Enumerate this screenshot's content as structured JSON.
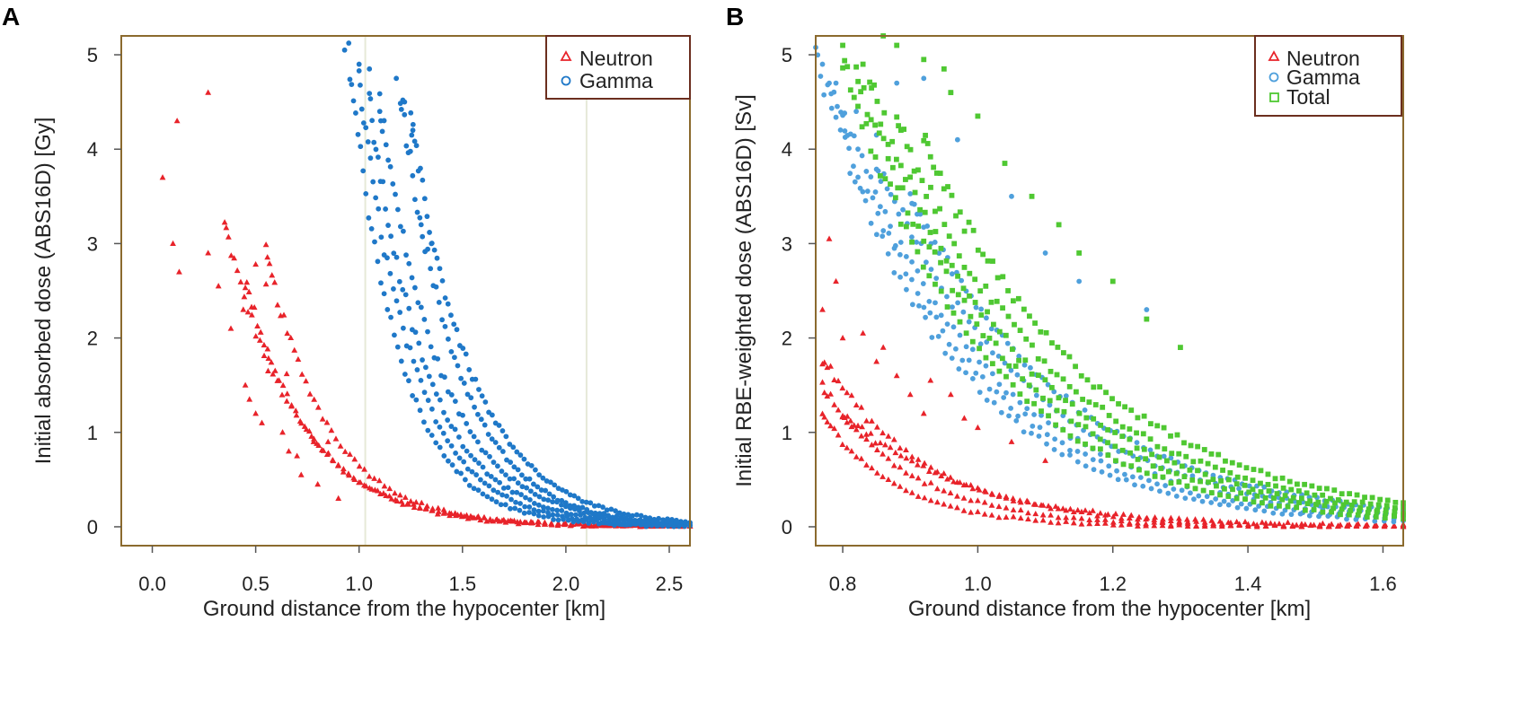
{
  "chart_data": [
    {
      "panel_label": "A",
      "type": "scatter",
      "xlabel": "Ground distance from the hypocenter [km]",
      "ylabel": "Initial absorbed dose (ABS16D) [Gy]",
      "xlim": [
        -0.15,
        2.6
      ],
      "ylim": [
        -0.2,
        5.2
      ],
      "xticks": [
        0.0,
        0.5,
        1.0,
        1.5,
        2.0,
        2.5
      ],
      "xtick_labels": [
        "0.0",
        "0.5",
        "1.0",
        "1.5",
        "2.0",
        "2.5"
      ],
      "yticks": [
        0,
        1,
        2,
        3,
        4,
        5
      ],
      "ytick_labels": [
        "0",
        "1",
        "2",
        "3",
        "4",
        "5"
      ],
      "vlines": [
        1.03,
        2.1
      ],
      "legend": {
        "position": "top-right",
        "entries": [
          "Neutron",
          "Gamma"
        ]
      },
      "series": [
        {
          "name": "Neutron",
          "marker": "triangle",
          "color": "#e8232a",
          "scatter_points": [
            [
              0.05,
              3.7
            ],
            [
              0.1,
              3.0
            ],
            [
              0.12,
              4.3
            ],
            [
              0.13,
              2.7
            ],
            [
              0.27,
              4.6
            ],
            [
              0.27,
              2.9
            ],
            [
              0.32,
              2.55
            ],
            [
              0.38,
              2.1
            ],
            [
              0.44,
              2.3
            ],
            [
              0.45,
              1.5
            ],
            [
              0.47,
              1.35
            ],
            [
              0.5,
              2.78
            ],
            [
              0.5,
              1.2
            ],
            [
              0.53,
              1.1
            ],
            [
              0.55,
              2.57
            ],
            [
              0.56,
              1.65
            ],
            [
              0.65,
              1.62
            ],
            [
              0.63,
              1.0
            ],
            [
              0.66,
              0.8
            ],
            [
              0.7,
              0.75
            ],
            [
              0.72,
              0.55
            ],
            [
              0.78,
              0.9
            ],
            [
              0.85,
              0.9
            ],
            [
              0.8,
              0.45
            ],
            [
              0.9,
              0.3
            ]
          ],
          "curves": [
            {
              "x_start": 0.35,
              "x_end": 2.6,
              "params": [
                0.0,
                3.2,
                2.9
              ]
            },
            {
              "x_start": 0.45,
              "x_end": 2.6,
              "params": [
                0.0,
                2.6,
                3.1
              ]
            },
            {
              "x_start": 0.55,
              "x_end": 2.6,
              "params": [
                0.0,
                2.9,
                3.3
              ]
            }
          ]
        },
        {
          "name": "Gamma",
          "marker": "circle",
          "color": "#1f78c8",
          "scatter_points": [
            [
              0.93,
              5.05
            ],
            [
              1.0,
              4.9
            ],
            [
              1.05,
              4.85
            ],
            [
              1.18,
              4.75
            ],
            [
              1.22,
              4.5
            ],
            [
              1.26,
              4.2
            ],
            [
              1.1,
              4.4
            ],
            [
              1.35,
              3.0
            ],
            [
              1.3,
              3.2
            ]
          ],
          "curves": [
            {
              "x_start": 0.95,
              "x_end": 2.6,
              "params": [
                0.0,
                5.0,
                4.1
              ]
            },
            {
              "x_start": 1.0,
              "x_end": 2.6,
              "params": [
                0.0,
                4.7,
                3.8
              ]
            },
            {
              "x_start": 1.05,
              "x_end": 2.6,
              "params": [
                0.0,
                4.5,
                3.6
              ]
            },
            {
              "x_start": 1.1,
              "x_end": 2.6,
              "params": [
                0.0,
                4.5,
                3.4
              ]
            },
            {
              "x_start": 1.2,
              "x_end": 2.6,
              "params": [
                0.0,
                4.6,
                3.6
              ]
            },
            {
              "x_start": 1.25,
              "x_end": 2.6,
              "params": [
                0.0,
                4.3,
                3.3
              ]
            }
          ]
        }
      ]
    },
    {
      "panel_label": "B",
      "type": "scatter",
      "xlabel": "Ground distance from the hypocenter [km]",
      "ylabel": "Initial RBE-weighted dose (ABS16D) [Sv]",
      "xlim": [
        0.76,
        1.63
      ],
      "ylim": [
        -0.2,
        5.2
      ],
      "xticks": [
        0.8,
        1.0,
        1.2,
        1.4,
        1.6
      ],
      "xtick_labels": [
        "0.8",
        "1.0",
        "1.2",
        "1.4",
        "1.6"
      ],
      "yticks": [
        0,
        1,
        2,
        3,
        4,
        5
      ],
      "ytick_labels": [
        "0",
        "1",
        "2",
        "3",
        "4",
        "5"
      ],
      "vlines": [],
      "legend": {
        "position": "top-right",
        "entries": [
          "Neutron",
          "Gamma",
          "Total"
        ]
      },
      "series": [
        {
          "name": "Neutron",
          "marker": "triangle",
          "color": "#e8232a",
          "scatter_points": [
            [
              0.77,
              2.3
            ],
            [
              0.78,
              3.05
            ],
            [
              0.79,
              2.6
            ],
            [
              0.8,
              2.0
            ],
            [
              0.83,
              2.05
            ],
            [
              0.86,
              1.9
            ],
            [
              0.88,
              1.6
            ],
            [
              0.9,
              1.4
            ],
            [
              0.93,
              1.55
            ],
            [
              0.96,
              1.4
            ],
            [
              0.98,
              1.15
            ],
            [
              1.0,
              1.05
            ],
            [
              1.05,
              0.9
            ],
            [
              1.1,
              0.7
            ],
            [
              0.85,
              1.75
            ],
            [
              0.92,
              1.2
            ]
          ],
          "curves": [
            {
              "x_start": 0.77,
              "x_end": 1.63,
              "params": [
                0.76,
                1.3,
                9.0
              ]
            },
            {
              "x_start": 0.77,
              "x_end": 1.63,
              "params": [
                0.76,
                1.6,
                7.5
              ]
            },
            {
              "x_start": 0.77,
              "x_end": 1.63,
              "params": [
                0.76,
                1.9,
                6.5
              ]
            },
            {
              "x_start": 0.8,
              "x_end": 1.63,
              "params": [
                0.76,
                1.5,
                5.5
              ]
            }
          ]
        },
        {
          "name": "Gamma",
          "marker": "circle",
          "color": "#4fa0dc",
          "scatter_points": [
            [
              0.77,
              4.9
            ],
            [
              0.79,
              4.7
            ],
            [
              0.82,
              4.4
            ],
            [
              0.85,
              4.15
            ],
            [
              0.88,
              4.7
            ],
            [
              0.92,
              4.75
            ],
            [
              0.96,
              4.6
            ],
            [
              0.97,
              4.1
            ],
            [
              1.05,
              3.5
            ],
            [
              1.1,
              2.9
            ],
            [
              1.15,
              2.6
            ],
            [
              1.25,
              2.3
            ]
          ],
          "curves": [
            {
              "x_start": 0.76,
              "x_end": 1.63,
              "params": [
                0.76,
                5.0,
                5.1
              ]
            },
            {
              "x_start": 0.78,
              "x_end": 1.63,
              "params": [
                0.76,
                5.1,
                4.8
              ]
            },
            {
              "x_start": 0.8,
              "x_end": 1.63,
              "params": [
                0.76,
                5.2,
                4.5
              ]
            },
            {
              "x_start": 0.85,
              "x_end": 1.63,
              "params": [
                0.76,
                5.7,
                4.3
              ]
            },
            {
              "x_start": 0.9,
              "x_end": 1.63,
              "params": [
                0.76,
                6.2,
                4.1
              ]
            }
          ]
        },
        {
          "name": "Total",
          "marker": "square",
          "color": "#4fc832",
          "scatter_points": [
            [
              0.8,
              5.1
            ],
            [
              0.83,
              4.9
            ],
            [
              0.86,
              5.2
            ],
            [
              0.88,
              5.1
            ],
            [
              0.92,
              4.95
            ],
            [
              0.95,
              4.85
            ],
            [
              0.96,
              4.6
            ],
            [
              1.0,
              4.35
            ],
            [
              1.04,
              3.85
            ],
            [
              1.08,
              3.5
            ],
            [
              1.12,
              3.2
            ],
            [
              1.15,
              2.9
            ],
            [
              1.2,
              2.6
            ],
            [
              1.25,
              2.2
            ],
            [
              1.3,
              1.9
            ]
          ],
          "curves": [
            {
              "x_start": 0.8,
              "x_end": 1.63,
              "params": [
                0.76,
                6.0,
                4.8
              ]
            },
            {
              "x_start": 0.82,
              "x_end": 1.63,
              "params": [
                0.76,
                6.3,
                4.5
              ]
            },
            {
              "x_start": 0.84,
              "x_end": 1.63,
              "params": [
                0.76,
                6.6,
                4.3
              ]
            },
            {
              "x_start": 0.88,
              "x_end": 1.63,
              "params": [
                0.76,
                7.0,
                4.1
              ]
            },
            {
              "x_start": 0.92,
              "x_end": 1.63,
              "params": [
                0.76,
                7.6,
                3.9
              ]
            }
          ]
        }
      ]
    }
  ]
}
